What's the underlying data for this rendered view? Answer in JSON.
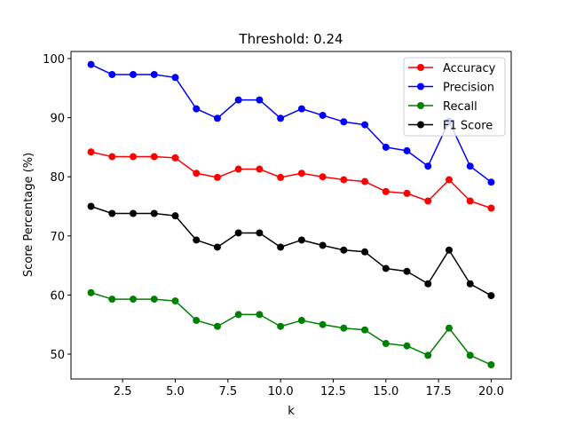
{
  "chart_data": {
    "type": "line",
    "title": "Threshold: 0.24",
    "xlabel": "k",
    "ylabel": "Score Percentage (%)",
    "xlim": [
      0.05,
      20.95
    ],
    "ylim": [
      45.8,
      101.2
    ],
    "xticks": [
      2.5,
      5.0,
      7.5,
      10.0,
      12.5,
      15.0,
      17.5,
      20.0
    ],
    "xtick_labels": [
      "2.5",
      "5.0",
      "7.5",
      "10.0",
      "12.5",
      "15.0",
      "17.5",
      "20.0"
    ],
    "yticks": [
      50,
      60,
      70,
      80,
      90,
      100
    ],
    "ytick_labels": [
      "50",
      "60",
      "70",
      "80",
      "90",
      "100"
    ],
    "grid": false,
    "legend_position": "top-right",
    "x": [
      1,
      2,
      3,
      4,
      5,
      6,
      7,
      8,
      9,
      10,
      11,
      12,
      13,
      14,
      15,
      16,
      17,
      18,
      19,
      20
    ],
    "series": [
      {
        "name": "Accuracy",
        "color": "#ff0000",
        "values": [
          84.2,
          83.4,
          83.4,
          83.4,
          83.2,
          80.6,
          79.9,
          81.3,
          81.3,
          79.9,
          80.6,
          80.0,
          79.5,
          79.2,
          77.5,
          77.2,
          75.9,
          79.5,
          75.9,
          74.7
        ]
      },
      {
        "name": "Precision",
        "color": "#0000ff",
        "values": [
          99.0,
          97.3,
          97.3,
          97.3,
          96.8,
          91.5,
          89.9,
          93.0,
          93.0,
          89.9,
          91.5,
          90.4,
          89.3,
          88.8,
          85.0,
          84.4,
          81.8,
          89.4,
          81.8,
          79.1
        ]
      },
      {
        "name": "Recall",
        "color": "#008000",
        "values": [
          60.4,
          59.3,
          59.3,
          59.3,
          59.0,
          55.7,
          54.7,
          56.7,
          56.7,
          54.7,
          55.7,
          55.0,
          54.4,
          54.1,
          51.8,
          51.4,
          49.8,
          54.4,
          49.8,
          48.2
        ]
      },
      {
        "name": "F1 Score",
        "color": "#000000",
        "values": [
          75.0,
          73.8,
          73.8,
          73.8,
          73.4,
          69.3,
          68.1,
          70.5,
          70.5,
          68.1,
          69.3,
          68.4,
          67.6,
          67.3,
          64.5,
          64.0,
          61.9,
          67.6,
          61.9,
          59.9
        ]
      }
    ]
  }
}
